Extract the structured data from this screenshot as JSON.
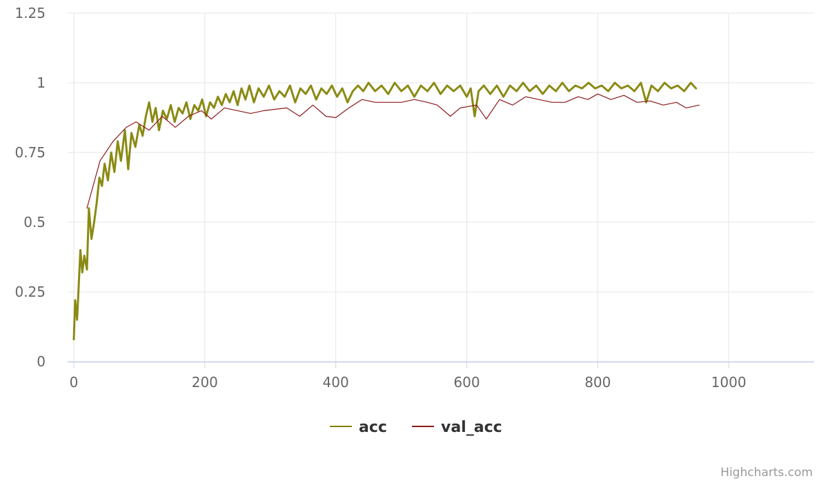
{
  "chart_data": {
    "type": "line",
    "title": "",
    "xlabel": "",
    "ylabel": "",
    "xlim": [
      0,
      1140
    ],
    "ylim": [
      0,
      1.25
    ],
    "x_ticks": [
      0,
      200,
      400,
      600,
      800,
      1000
    ],
    "y_ticks": [
      0,
      0.25,
      0.5,
      0.75,
      1,
      1.25
    ],
    "x_tick_labels": [
      "0",
      "200",
      "400",
      "600",
      "800",
      "1000"
    ],
    "y_tick_labels": [
      "0",
      "0.25",
      "0.5",
      "0.75",
      "1",
      "1.25"
    ],
    "grid": true,
    "legend_position": "bottom-center",
    "series": [
      {
        "name": "acc",
        "color": "#808000",
        "points": [
          [
            0,
            0.08
          ],
          [
            2,
            0.22
          ],
          [
            5,
            0.15
          ],
          [
            8,
            0.3
          ],
          [
            10,
            0.4
          ],
          [
            13,
            0.32
          ],
          [
            16,
            0.38
          ],
          [
            20,
            0.33
          ],
          [
            23,
            0.55
          ],
          [
            27,
            0.44
          ],
          [
            31,
            0.5
          ],
          [
            35,
            0.57
          ],
          [
            39,
            0.66
          ],
          [
            43,
            0.63
          ],
          [
            47,
            0.71
          ],
          [
            52,
            0.65
          ],
          [
            57,
            0.75
          ],
          [
            62,
            0.68
          ],
          [
            67,
            0.79
          ],
          [
            72,
            0.72
          ],
          [
            78,
            0.83
          ],
          [
            83,
            0.69
          ],
          [
            88,
            0.82
          ],
          [
            94,
            0.77
          ],
          [
            100,
            0.85
          ],
          [
            105,
            0.81
          ],
          [
            110,
            0.88
          ],
          [
            115,
            0.93
          ],
          [
            120,
            0.86
          ],
          [
            125,
            0.91
          ],
          [
            130,
            0.83
          ],
          [
            136,
            0.9
          ],
          [
            142,
            0.87
          ],
          [
            148,
            0.92
          ],
          [
            154,
            0.86
          ],
          [
            160,
            0.91
          ],
          [
            166,
            0.89
          ],
          [
            172,
            0.93
          ],
          [
            178,
            0.87
          ],
          [
            184,
            0.92
          ],
          [
            190,
            0.9
          ],
          [
            196,
            0.94
          ],
          [
            202,
            0.88
          ],
          [
            208,
            0.93
          ],
          [
            214,
            0.91
          ],
          [
            220,
            0.95
          ],
          [
            226,
            0.92
          ],
          [
            232,
            0.96
          ],
          [
            238,
            0.93
          ],
          [
            244,
            0.97
          ],
          [
            250,
            0.92
          ],
          [
            256,
            0.98
          ],
          [
            262,
            0.94
          ],
          [
            268,
            0.99
          ],
          [
            275,
            0.93
          ],
          [
            282,
            0.98
          ],
          [
            290,
            0.95
          ],
          [
            298,
            0.99
          ],
          [
            306,
            0.94
          ],
          [
            314,
            0.97
          ],
          [
            322,
            0.95
          ],
          [
            330,
            0.99
          ],
          [
            338,
            0.93
          ],
          [
            346,
            0.98
          ],
          [
            354,
            0.96
          ],
          [
            362,
            0.99
          ],
          [
            370,
            0.94
          ],
          [
            378,
            0.98
          ],
          [
            386,
            0.96
          ],
          [
            394,
            0.99
          ],
          [
            402,
            0.95
          ],
          [
            410,
            0.98
          ],
          [
            418,
            0.93
          ],
          [
            426,
            0.97
          ],
          [
            434,
            0.99
          ],
          [
            442,
            0.97
          ],
          [
            450,
            1.0
          ],
          [
            460,
            0.97
          ],
          [
            470,
            0.99
          ],
          [
            480,
            0.96
          ],
          [
            490,
            1.0
          ],
          [
            500,
            0.97
          ],
          [
            510,
            0.99
          ],
          [
            520,
            0.95
          ],
          [
            530,
            0.99
          ],
          [
            540,
            0.97
          ],
          [
            550,
            1.0
          ],
          [
            560,
            0.96
          ],
          [
            570,
            0.99
          ],
          [
            580,
            0.97
          ],
          [
            590,
            0.99
          ],
          [
            600,
            0.95
          ],
          [
            606,
            0.98
          ],
          [
            612,
            0.88
          ],
          [
            618,
            0.97
          ],
          [
            626,
            0.99
          ],
          [
            636,
            0.96
          ],
          [
            646,
            0.99
          ],
          [
            656,
            0.95
          ],
          [
            666,
            0.99
          ],
          [
            676,
            0.97
          ],
          [
            686,
            1.0
          ],
          [
            696,
            0.97
          ],
          [
            706,
            0.99
          ],
          [
            716,
            0.96
          ],
          [
            726,
            0.99
          ],
          [
            736,
            0.97
          ],
          [
            746,
            1.0
          ],
          [
            756,
            0.97
          ],
          [
            766,
            0.99
          ],
          [
            776,
            0.98
          ],
          [
            786,
            1.0
          ],
          [
            796,
            0.98
          ],
          [
            806,
            0.99
          ],
          [
            816,
            0.97
          ],
          [
            826,
            1.0
          ],
          [
            836,
            0.98
          ],
          [
            846,
            0.99
          ],
          [
            856,
            0.97
          ],
          [
            866,
            1.0
          ],
          [
            874,
            0.93
          ],
          [
            882,
            0.99
          ],
          [
            892,
            0.97
          ],
          [
            902,
            1.0
          ],
          [
            912,
            0.98
          ],
          [
            922,
            0.99
          ],
          [
            932,
            0.97
          ],
          [
            942,
            1.0
          ],
          [
            950,
            0.98
          ]
        ]
      },
      {
        "name": "val_acc",
        "color": "#8b1a1a",
        "points": [
          [
            20,
            0.55
          ],
          [
            40,
            0.72
          ],
          [
            60,
            0.79
          ],
          [
            80,
            0.84
          ],
          [
            95,
            0.86
          ],
          [
            115,
            0.83
          ],
          [
            135,
            0.88
          ],
          [
            155,
            0.84
          ],
          [
            175,
            0.88
          ],
          [
            195,
            0.9
          ],
          [
            210,
            0.87
          ],
          [
            230,
            0.91
          ],
          [
            250,
            0.9
          ],
          [
            270,
            0.89
          ],
          [
            290,
            0.9
          ],
          [
            325,
            0.91
          ],
          [
            345,
            0.88
          ],
          [
            365,
            0.92
          ],
          [
            385,
            0.88
          ],
          [
            400,
            0.875
          ],
          [
            420,
            0.91
          ],
          [
            440,
            0.94
          ],
          [
            460,
            0.93
          ],
          [
            480,
            0.93
          ],
          [
            500,
            0.93
          ],
          [
            520,
            0.94
          ],
          [
            540,
            0.93
          ],
          [
            555,
            0.92
          ],
          [
            575,
            0.88
          ],
          [
            590,
            0.91
          ],
          [
            615,
            0.92
          ],
          [
            630,
            0.87
          ],
          [
            650,
            0.94
          ],
          [
            670,
            0.92
          ],
          [
            690,
            0.95
          ],
          [
            710,
            0.94
          ],
          [
            730,
            0.93
          ],
          [
            750,
            0.93
          ],
          [
            770,
            0.95
          ],
          [
            785,
            0.94
          ],
          [
            800,
            0.96
          ],
          [
            820,
            0.94
          ],
          [
            840,
            0.955
          ],
          [
            860,
            0.93
          ],
          [
            880,
            0.935
          ],
          [
            900,
            0.92
          ],
          [
            920,
            0.93
          ],
          [
            935,
            0.91
          ],
          [
            955,
            0.92
          ]
        ]
      }
    ]
  },
  "credits": {
    "text": "Highcharts.com"
  }
}
